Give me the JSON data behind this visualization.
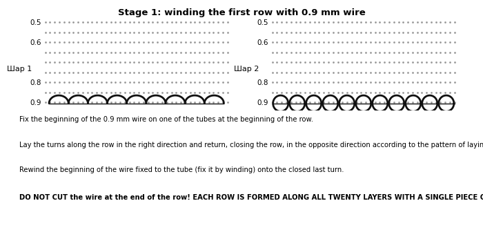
{
  "title": "Stage 1: winding the first row with 0.9 mm wire",
  "title_fontsize": 9.5,
  "label1": "Шар 1",
  "label2": "Шар 2",
  "yticks": [
    0.5,
    0.6,
    0.8,
    0.9
  ],
  "dot_color": "#999999",
  "wire_color": "#111111",
  "bg_color": "#ffffff",
  "text_lines": [
    "Fix the beginning of the 0.9 mm wire on one of the tubes at the beginning of the row.",
    "Lay the turns along the row in the right direction and return, closing the row, in the opposite direction according to the pattern of laying the turns.",
    "Rewind the beginning of the wire fixed to the tube (fix it by winding) onto the closed last turn.",
    "DO NOT CUT the wire at the end of the row! EACH ROW IS FORMED ALONG ALL TWENTY LAYERS WITH A SINGLE PIECE OF WIRE!"
  ],
  "text_bold": [
    false,
    false,
    false,
    true
  ],
  "text_fontsize": 7.2
}
